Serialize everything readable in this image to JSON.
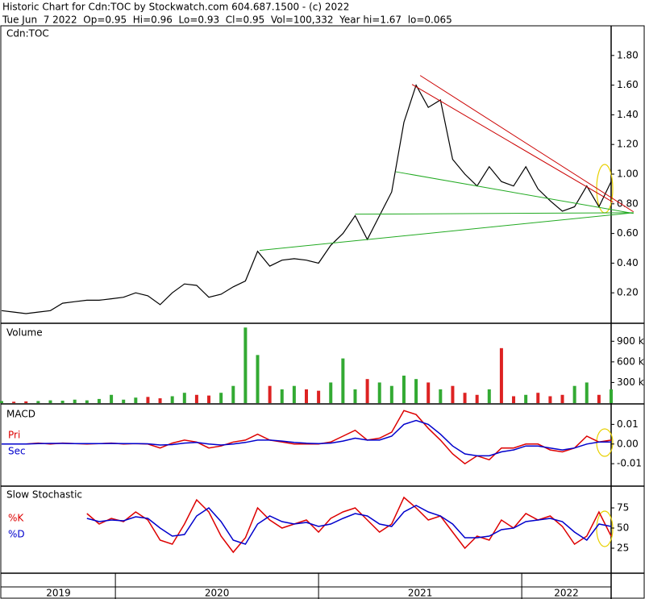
{
  "header": {
    "line1": "Historic Chart for Cdn:TOC by Stockwatch.com 604.687.1500 - (c) 2022",
    "line2": "Tue Jun  7 2022  Op=0.95  Hi=0.96  Lo=0.93  Cl=0.95  Vol=100,332  Year hi=1.67  lo=0.065"
  },
  "time_axis": {
    "x": [
      2019.44,
      2019.5,
      2019.56,
      2019.62,
      2019.68,
      2019.74,
      2019.8,
      2019.86,
      2019.92,
      2019.98,
      2020.04,
      2020.1,
      2020.16,
      2020.22,
      2020.28,
      2020.34,
      2020.4,
      2020.46,
      2020.52,
      2020.58,
      2020.64,
      2020.7,
      2020.76,
      2020.82,
      2020.88,
      2020.94,
      2021.0,
      2021.06,
      2021.12,
      2021.18,
      2021.24,
      2021.3,
      2021.36,
      2021.42,
      2021.48,
      2021.54,
      2021.6,
      2021.66,
      2021.72,
      2021.78,
      2021.84,
      2021.9,
      2021.96,
      2022.02,
      2022.08,
      2022.14,
      2022.2,
      2022.26,
      2022.32,
      2022.38,
      2022.44
    ],
    "xlim": [
      2019.44,
      2022.44
    ],
    "xticks": [
      {
        "value": 2019.72,
        "label": "2019"
      },
      {
        "value": 2020.5,
        "label": "2020"
      },
      {
        "value": 2021.5,
        "label": "2021"
      },
      {
        "value": 2022.22,
        "label": "2022"
      }
    ],
    "boundaries": [
      2020,
      2021,
      2022
    ]
  },
  "chart_data": [
    {
      "type": "line",
      "title": "Cdn:TOC",
      "color": "#000000",
      "values": [
        0.08,
        0.07,
        0.06,
        0.07,
        0.08,
        0.13,
        0.14,
        0.15,
        0.15,
        0.16,
        0.17,
        0.2,
        0.18,
        0.12,
        0.2,
        0.26,
        0.25,
        0.17,
        0.19,
        0.24,
        0.28,
        0.48,
        0.38,
        0.42,
        0.43,
        0.42,
        0.4,
        0.52,
        0.6,
        0.72,
        0.56,
        0.72,
        0.88,
        1.35,
        1.6,
        1.45,
        1.5,
        1.1,
        1.0,
        0.92,
        1.05,
        0.95,
        0.92,
        1.05,
        0.9,
        0.82,
        0.75,
        0.78,
        0.92,
        0.78,
        0.95
      ],
      "ylim": [
        0,
        2.0
      ],
      "yticks": [
        {
          "value": 0.2,
          "label": "0.20"
        },
        {
          "value": 0.4,
          "label": "0.40"
        },
        {
          "value": 0.6,
          "label": "0.60"
        },
        {
          "value": 0.8,
          "label": "0.80"
        },
        {
          "value": 1.0,
          "label": "1.00"
        },
        {
          "value": 1.2,
          "label": "1.20"
        },
        {
          "value": 1.4,
          "label": "1.40"
        },
        {
          "value": 1.6,
          "label": "1.60"
        },
        {
          "value": 1.8,
          "label": "1.80"
        }
      ],
      "trendlines": [
        {
          "color": "#cc0000",
          "x": [
            2021.5,
            2022.55
          ],
          "y": [
            1.665,
            0.746
          ]
        },
        {
          "color": "#cc0000",
          "x": [
            2021.46,
            2022.45
          ],
          "y": [
            1.605,
            0.81
          ]
        },
        {
          "color": "#22aa22",
          "x": [
            2021.38,
            2022.55
          ],
          "y": [
            1.016,
            0.735
          ]
        },
        {
          "color": "#22aa22",
          "x": [
            2021.18,
            2022.55
          ],
          "y": [
            0.73,
            0.74
          ]
        },
        {
          "color": "#22aa22",
          "x": [
            2020.71,
            2022.55
          ],
          "y": [
            0.486,
            0.74
          ]
        }
      ]
    },
    {
      "type": "bar",
      "title": "Volume",
      "up_color": "#33aa33",
      "down_color": "#dd2222",
      "values": [
        30000,
        20000,
        25000,
        30000,
        40000,
        35000,
        50000,
        40000,
        60000,
        120000,
        50000,
        80000,
        90000,
        70000,
        100000,
        150000,
        120000,
        110000,
        150000,
        250000,
        1100000,
        700000,
        250000,
        200000,
        250000,
        200000,
        180000,
        300000,
        650000,
        200000,
        350000,
        300000,
        250000,
        400000,
        350000,
        300000,
        200000,
        250000,
        150000,
        120000,
        200000,
        800000,
        100000,
        120000,
        150000,
        100000,
        120000,
        250000,
        300000,
        120000,
        200000
      ],
      "ylim": [
        0,
        1150000
      ],
      "yticks": [
        {
          "value": 300000,
          "label": "300 k"
        },
        {
          "value": 600000,
          "label": "600 k"
        },
        {
          "value": 900000,
          "label": "900 k"
        }
      ]
    },
    {
      "type": "line",
      "title": "MACD",
      "series": [
        {
          "name": "Pri",
          "color": "#dd0000",
          "values": [
            0,
            0,
            0,
            0.0005,
            0,
            0.0005,
            0.0002,
            0,
            0.0002,
            0.0005,
            0,
            0.0002,
            0,
            -0.002,
            0.0005,
            0.002,
            0.001,
            -0.002,
            -0.001,
            0.001,
            0.002,
            0.005,
            0.002,
            0.001,
            0,
            0,
            0,
            0.001,
            0.004,
            0.007,
            0.002,
            0.003,
            0.006,
            0.017,
            0.015,
            0.008,
            0.002,
            -0.005,
            -0.01,
            -0.006,
            -0.008,
            -0.002,
            -0.002,
            0,
            0,
            -0.003,
            -0.004,
            -0.002,
            0.004,
            0.001,
            0.002
          ]
        },
        {
          "name": "Sec",
          "color": "#0000cc",
          "values": [
            0,
            0,
            0,
            0.0002,
            0.0003,
            0.0003,
            0.0002,
            0.0002,
            0.0002,
            0.0003,
            0.0002,
            0.0002,
            0.0001,
            -0.0005,
            -0.0003,
            0.0005,
            0.0008,
            0,
            -0.0005,
            0,
            0.0008,
            0.002,
            0.002,
            0.0015,
            0.0008,
            0.0004,
            0.0002,
            0.0005,
            0.0015,
            0.003,
            0.002,
            0.002,
            0.004,
            0.01,
            0.012,
            0.01,
            0.005,
            -0.001,
            -0.005,
            -0.006,
            -0.006,
            -0.004,
            -0.003,
            -0.001,
            -0.001,
            -0.002,
            -0.003,
            -0.002,
            0,
            0.001,
            0.001
          ]
        }
      ],
      "ylim": [
        -0.021,
        0.02
      ],
      "yticks": [
        {
          "value": -0.01,
          "label": "-0.01"
        },
        {
          "value": 0,
          "label": "0.00"
        },
        {
          "value": 0.01,
          "label": "0.01"
        }
      ]
    },
    {
      "type": "line",
      "title": "Slow Stochastic",
      "series": [
        {
          "name": "%K",
          "color": "#dd0000",
          "values": [
            null,
            null,
            null,
            null,
            null,
            null,
            null,
            68,
            55,
            62,
            58,
            70,
            60,
            35,
            30,
            55,
            85,
            70,
            40,
            20,
            38,
            75,
            60,
            50,
            55,
            60,
            45,
            62,
            70,
            75,
            60,
            45,
            55,
            88,
            75,
            60,
            65,
            45,
            25,
            40,
            35,
            60,
            50,
            68,
            60,
            65,
            52,
            30,
            40,
            70,
            40
          ]
        },
        {
          "name": "%D",
          "color": "#0000cc",
          "values": [
            null,
            null,
            null,
            null,
            null,
            null,
            null,
            62,
            58,
            60,
            59,
            64,
            62,
            50,
            40,
            42,
            65,
            75,
            58,
            35,
            30,
            55,
            65,
            58,
            55,
            57,
            52,
            55,
            62,
            68,
            65,
            55,
            52,
            70,
            78,
            70,
            65,
            55,
            38,
            38,
            40,
            48,
            50,
            58,
            60,
            62,
            58,
            45,
            35,
            55,
            52
          ]
        }
      ],
      "ylim": [
        -5,
        100
      ],
      "yticks": [
        25,
        50,
        75
      ]
    }
  ]
}
